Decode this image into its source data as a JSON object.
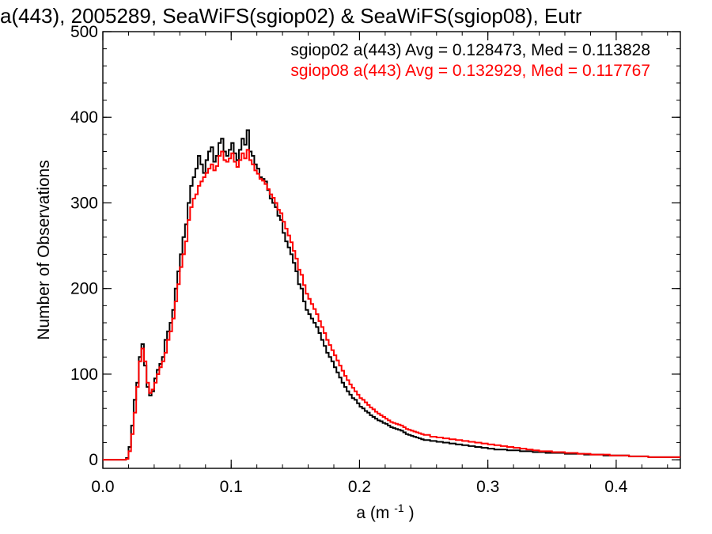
{
  "chart_data": {
    "type": "line",
    "title": "a(443), 2005289, SeaWiFS(sgiop02) & SeaWiFS(sgiop08), Eutr",
    "xlabel": "a (m",
    "xlabel_sup": "-1",
    "xlabel_close": ")",
    "ylabel": "Number of Observations",
    "xlim": [
      0.0,
      0.45
    ],
    "ylim": [
      -10,
      500
    ],
    "x_ticks": [
      0.0,
      0.1,
      0.2,
      0.3,
      0.4
    ],
    "x_tick_labels": [
      "0.0",
      "0.1",
      "0.2",
      "0.3",
      "0.4"
    ],
    "y_ticks": [
      0,
      100,
      200,
      300,
      400,
      500
    ],
    "y_tick_labels": [
      "0",
      "100",
      "200",
      "300",
      "400",
      "500"
    ],
    "grid": false,
    "step_histogram": true,
    "annotations": [
      {
        "text": "sgiop02 a(443) Avg = 0.128473, Med = 0.113828",
        "color": "#000000"
      },
      {
        "text": "sgiop08 a(443) Avg = 0.132929, Med = 0.117767",
        "color": "#ff0000"
      }
    ],
    "series": [
      {
        "color": "#000000",
        "points": [
          [
            0.0,
            0
          ],
          [
            0.015,
            0
          ],
          [
            0.018,
            2
          ],
          [
            0.02,
            15
          ],
          [
            0.022,
            40
          ],
          [
            0.024,
            70
          ],
          [
            0.026,
            90
          ],
          [
            0.028,
            120
          ],
          [
            0.03,
            135
          ],
          [
            0.032,
            110
          ],
          [
            0.034,
            85
          ],
          [
            0.036,
            75
          ],
          [
            0.038,
            80
          ],
          [
            0.04,
            95
          ],
          [
            0.042,
            105
          ],
          [
            0.044,
            112
          ],
          [
            0.046,
            120
          ],
          [
            0.048,
            140
          ],
          [
            0.05,
            150
          ],
          [
            0.052,
            160
          ],
          [
            0.054,
            175
          ],
          [
            0.056,
            200
          ],
          [
            0.058,
            220
          ],
          [
            0.06,
            240
          ],
          [
            0.062,
            260
          ],
          [
            0.064,
            275
          ],
          [
            0.066,
            300
          ],
          [
            0.068,
            320
          ],
          [
            0.07,
            330
          ],
          [
            0.072,
            340
          ],
          [
            0.074,
            355
          ],
          [
            0.076,
            345
          ],
          [
            0.078,
            335
          ],
          [
            0.08,
            350
          ],
          [
            0.082,
            360
          ],
          [
            0.084,
            365
          ],
          [
            0.086,
            348
          ],
          [
            0.088,
            355
          ],
          [
            0.09,
            370
          ],
          [
            0.092,
            375
          ],
          [
            0.094,
            360
          ],
          [
            0.096,
            355
          ],
          [
            0.098,
            362
          ],
          [
            0.1,
            370
          ],
          [
            0.102,
            358
          ],
          [
            0.104,
            350
          ],
          [
            0.106,
            362
          ],
          [
            0.108,
            375
          ],
          [
            0.11,
            368
          ],
          [
            0.112,
            385
          ],
          [
            0.114,
            360
          ],
          [
            0.116,
            355
          ],
          [
            0.118,
            345
          ],
          [
            0.12,
            340
          ],
          [
            0.122,
            330
          ],
          [
            0.124,
            328
          ],
          [
            0.126,
            325
          ],
          [
            0.128,
            315
          ],
          [
            0.13,
            305
          ],
          [
            0.132,
            300
          ],
          [
            0.134,
            295
          ],
          [
            0.136,
            285
          ],
          [
            0.138,
            280
          ],
          [
            0.14,
            265
          ],
          [
            0.142,
            255
          ],
          [
            0.144,
            248
          ],
          [
            0.146,
            240
          ],
          [
            0.148,
            230
          ],
          [
            0.15,
            220
          ],
          [
            0.152,
            205
          ],
          [
            0.154,
            200
          ],
          [
            0.156,
            185
          ],
          [
            0.158,
            175
          ],
          [
            0.16,
            170
          ],
          [
            0.162,
            165
          ],
          [
            0.164,
            160
          ],
          [
            0.166,
            155
          ],
          [
            0.168,
            148
          ],
          [
            0.17,
            140
          ],
          [
            0.172,
            133
          ],
          [
            0.174,
            125
          ],
          [
            0.176,
            120
          ],
          [
            0.178,
            115
          ],
          [
            0.18,
            108
          ],
          [
            0.182,
            102
          ],
          [
            0.184,
            96
          ],
          [
            0.186,
            90
          ],
          [
            0.188,
            85
          ],
          [
            0.19,
            80
          ],
          [
            0.192,
            76
          ],
          [
            0.194,
            72
          ],
          [
            0.196,
            70
          ],
          [
            0.198,
            66
          ],
          [
            0.2,
            62
          ],
          [
            0.202,
            60
          ],
          [
            0.204,
            57
          ],
          [
            0.206,
            55
          ],
          [
            0.208,
            52
          ],
          [
            0.21,
            50
          ],
          [
            0.212,
            48
          ],
          [
            0.214,
            46
          ],
          [
            0.216,
            45
          ],
          [
            0.218,
            43
          ],
          [
            0.22,
            42
          ],
          [
            0.222,
            40
          ],
          [
            0.224,
            38
          ],
          [
            0.226,
            37
          ],
          [
            0.228,
            36
          ],
          [
            0.23,
            35
          ],
          [
            0.232,
            34
          ],
          [
            0.234,
            32
          ],
          [
            0.236,
            30
          ],
          [
            0.238,
            29
          ],
          [
            0.24,
            28
          ],
          [
            0.242,
            27
          ],
          [
            0.244,
            26
          ],
          [
            0.246,
            25
          ],
          [
            0.248,
            24
          ],
          [
            0.25,
            23
          ],
          [
            0.255,
            22
          ],
          [
            0.26,
            21
          ],
          [
            0.265,
            20
          ],
          [
            0.27,
            19
          ],
          [
            0.275,
            18
          ],
          [
            0.28,
            17
          ],
          [
            0.285,
            16
          ],
          [
            0.29,
            15
          ],
          [
            0.295,
            14
          ],
          [
            0.3,
            13
          ],
          [
            0.305,
            12
          ],
          [
            0.31,
            12
          ],
          [
            0.315,
            11
          ],
          [
            0.32,
            11
          ],
          [
            0.325,
            10
          ],
          [
            0.33,
            10
          ],
          [
            0.335,
            9
          ],
          [
            0.34,
            9
          ],
          [
            0.345,
            8
          ],
          [
            0.35,
            8
          ],
          [
            0.355,
            8
          ],
          [
            0.36,
            7
          ],
          [
            0.365,
            7
          ],
          [
            0.37,
            7
          ],
          [
            0.375,
            6
          ],
          [
            0.38,
            6
          ],
          [
            0.385,
            6
          ],
          [
            0.39,
            5
          ],
          [
            0.395,
            5
          ],
          [
            0.4,
            5
          ],
          [
            0.405,
            5
          ],
          [
            0.41,
            4
          ],
          [
            0.415,
            4
          ],
          [
            0.42,
            4
          ],
          [
            0.425,
            3
          ],
          [
            0.43,
            3
          ],
          [
            0.435,
            3
          ],
          [
            0.44,
            3
          ],
          [
            0.445,
            3
          ],
          [
            0.45,
            3
          ]
        ]
      },
      {
        "color": "#ff0000",
        "points": [
          [
            0.0,
            0
          ],
          [
            0.016,
            0
          ],
          [
            0.018,
            1
          ],
          [
            0.02,
            10
          ],
          [
            0.022,
            30
          ],
          [
            0.024,
            55
          ],
          [
            0.026,
            85
          ],
          [
            0.028,
            115
          ],
          [
            0.03,
            130
          ],
          [
            0.032,
            115
          ],
          [
            0.034,
            90
          ],
          [
            0.036,
            78
          ],
          [
            0.038,
            82
          ],
          [
            0.04,
            90
          ],
          [
            0.042,
            100
          ],
          [
            0.044,
            108
          ],
          [
            0.046,
            115
          ],
          [
            0.048,
            125
          ],
          [
            0.05,
            140
          ],
          [
            0.052,
            150
          ],
          [
            0.054,
            165
          ],
          [
            0.056,
            185
          ],
          [
            0.058,
            205
          ],
          [
            0.06,
            225
          ],
          [
            0.062,
            240
          ],
          [
            0.064,
            255
          ],
          [
            0.066,
            280
          ],
          [
            0.068,
            295
          ],
          [
            0.07,
            305
          ],
          [
            0.072,
            310
          ],
          [
            0.074,
            320
          ],
          [
            0.076,
            325
          ],
          [
            0.078,
            330
          ],
          [
            0.08,
            335
          ],
          [
            0.082,
            340
          ],
          [
            0.084,
            345
          ],
          [
            0.086,
            338
          ],
          [
            0.088,
            343
          ],
          [
            0.09,
            355
          ],
          [
            0.092,
            360
          ],
          [
            0.094,
            350
          ],
          [
            0.096,
            348
          ],
          [
            0.098,
            352
          ],
          [
            0.1,
            358
          ],
          [
            0.102,
            348
          ],
          [
            0.104,
            342
          ],
          [
            0.106,
            350
          ],
          [
            0.108,
            358
          ],
          [
            0.11,
            352
          ],
          [
            0.112,
            362
          ],
          [
            0.114,
            350
          ],
          [
            0.116,
            345
          ],
          [
            0.118,
            338
          ],
          [
            0.12,
            334
          ],
          [
            0.122,
            328
          ],
          [
            0.124,
            326
          ],
          [
            0.126,
            322
          ],
          [
            0.128,
            316
          ],
          [
            0.13,
            310
          ],
          [
            0.132,
            306
          ],
          [
            0.134,
            300
          ],
          [
            0.136,
            292
          ],
          [
            0.138,
            288
          ],
          [
            0.14,
            278
          ],
          [
            0.142,
            270
          ],
          [
            0.144,
            262
          ],
          [
            0.146,
            254
          ],
          [
            0.148,
            244
          ],
          [
            0.15,
            235
          ],
          [
            0.152,
            222
          ],
          [
            0.154,
            216
          ],
          [
            0.156,
            204
          ],
          [
            0.158,
            194
          ],
          [
            0.16,
            188
          ],
          [
            0.162,
            182
          ],
          [
            0.164,
            176
          ],
          [
            0.166,
            170
          ],
          [
            0.168,
            162
          ],
          [
            0.17,
            155
          ],
          [
            0.172,
            148
          ],
          [
            0.174,
            140
          ],
          [
            0.176,
            134
          ],
          [
            0.178,
            128
          ],
          [
            0.18,
            122
          ],
          [
            0.182,
            116
          ],
          [
            0.184,
            110
          ],
          [
            0.186,
            104
          ],
          [
            0.188,
            98
          ],
          [
            0.19,
            93
          ],
          [
            0.192,
            88
          ],
          [
            0.194,
            84
          ],
          [
            0.196,
            80
          ],
          [
            0.198,
            76
          ],
          [
            0.2,
            72
          ],
          [
            0.202,
            70
          ],
          [
            0.204,
            67
          ],
          [
            0.206,
            64
          ],
          [
            0.208,
            61
          ],
          [
            0.21,
            59
          ],
          [
            0.212,
            56
          ],
          [
            0.214,
            54
          ],
          [
            0.216,
            52
          ],
          [
            0.218,
            50
          ],
          [
            0.22,
            48
          ],
          [
            0.222,
            46
          ],
          [
            0.224,
            44
          ],
          [
            0.226,
            43
          ],
          [
            0.228,
            42
          ],
          [
            0.23,
            41
          ],
          [
            0.232,
            40
          ],
          [
            0.234,
            38
          ],
          [
            0.236,
            36
          ],
          [
            0.238,
            35
          ],
          [
            0.24,
            34
          ],
          [
            0.242,
            33
          ],
          [
            0.244,
            32
          ],
          [
            0.246,
            31
          ],
          [
            0.248,
            30
          ],
          [
            0.25,
            29
          ],
          [
            0.255,
            27
          ],
          [
            0.26,
            26
          ],
          [
            0.265,
            25
          ],
          [
            0.27,
            24
          ],
          [
            0.275,
            23
          ],
          [
            0.28,
            22
          ],
          [
            0.285,
            21
          ],
          [
            0.29,
            20
          ],
          [
            0.295,
            19
          ],
          [
            0.3,
            18
          ],
          [
            0.305,
            17
          ],
          [
            0.31,
            16
          ],
          [
            0.315,
            15
          ],
          [
            0.32,
            14
          ],
          [
            0.325,
            13
          ],
          [
            0.33,
            12
          ],
          [
            0.335,
            11
          ],
          [
            0.34,
            10
          ],
          [
            0.345,
            10
          ],
          [
            0.35,
            9
          ],
          [
            0.355,
            9
          ],
          [
            0.36,
            8
          ],
          [
            0.365,
            8
          ],
          [
            0.37,
            7
          ],
          [
            0.375,
            7
          ],
          [
            0.38,
            6
          ],
          [
            0.385,
            6
          ],
          [
            0.39,
            6
          ],
          [
            0.395,
            5
          ],
          [
            0.4,
            5
          ],
          [
            0.405,
            5
          ],
          [
            0.41,
            4
          ],
          [
            0.415,
            4
          ],
          [
            0.42,
            4
          ],
          [
            0.425,
            3
          ],
          [
            0.43,
            3
          ],
          [
            0.435,
            3
          ],
          [
            0.44,
            3
          ],
          [
            0.445,
            3
          ],
          [
            0.45,
            3
          ]
        ]
      }
    ]
  }
}
